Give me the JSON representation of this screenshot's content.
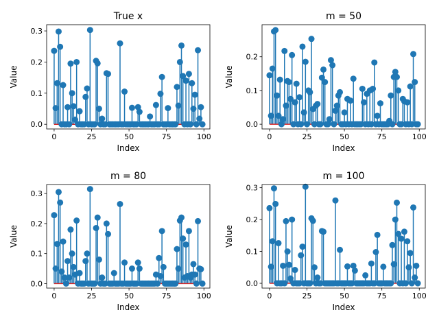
{
  "chart_data": [
    {
      "type": "stem",
      "title": "True x",
      "xlabel": "Index",
      "ylabel": "Value",
      "xlim": [
        -5,
        104
      ],
      "ylim": [
        -0.015,
        0.32
      ],
      "xticks": [
        0,
        25,
        50,
        75,
        100
      ],
      "yticks": [
        0.0,
        0.1,
        0.2,
        0.3
      ],
      "ytick_labels": [
        "0.0",
        "0.1",
        "0.2",
        "0.3"
      ],
      "marker_color": "#1f77b4",
      "baseline_color": "#d62728",
      "series": [
        {
          "x": [
            0,
            1,
            2,
            3,
            4,
            5,
            6,
            7,
            8,
            9,
            10,
            11,
            12,
            13,
            14,
            15,
            16,
            17,
            18,
            19,
            20,
            21,
            22,
            23,
            24,
            25,
            26,
            27,
            28,
            29,
            30,
            31,
            32,
            33,
            34,
            35,
            36,
            37,
            38,
            39,
            40,
            41,
            42,
            43,
            44,
            45,
            46,
            47,
            48,
            49,
            50,
            51,
            52,
            53,
            54,
            55,
            56,
            57,
            58,
            59,
            60,
            61,
            62,
            63,
            64,
            65,
            66,
            67,
            68,
            69,
            70,
            71,
            72,
            73,
            74,
            75,
            76,
            77,
            78,
            79,
            80,
            81,
            82,
            83,
            84,
            85,
            86,
            87,
            88,
            89,
            90,
            91,
            92,
            93,
            94,
            95,
            96,
            97,
            98,
            99
          ],
          "y": [
            0.236,
            0.052,
            0.132,
            0.298,
            0.249,
            0.0,
            0.126,
            0.0,
            0.0,
            0.055,
            0.0,
            0.195,
            0.1,
            0.058,
            0.015,
            0.2,
            0.0,
            0.042,
            0.0,
            0.0,
            0.0,
            0.088,
            0.115,
            0.0,
            0.303,
            0.0,
            0.0,
            0.0,
            0.204,
            0.196,
            0.05,
            0.0,
            0.018,
            0.0,
            0.0,
            0.164,
            0.162,
            0.0,
            0.0,
            0.0,
            0.0,
            0.0,
            0.0,
            0.0,
            0.26,
            0.0,
            0.0,
            0.105,
            0.0,
            0.0,
            0.0,
            0.0,
            0.053,
            0.0,
            0.0,
            0.0,
            0.055,
            0.04,
            0.0,
            0.0,
            0.0,
            0.0,
            0.0,
            0.0,
            0.025,
            0.0,
            0.0,
            0.0,
            0.062,
            0.0,
            0.0,
            0.098,
            0.152,
            0.0,
            0.0,
            0.0,
            0.052,
            0.0,
            0.0,
            0.0,
            0.0,
            0.0,
            0.12,
            0.06,
            0.2,
            0.253,
            0.155,
            0.0,
            0.14,
            0.0,
            0.162,
            0.0,
            0.132,
            0.05,
            0.095,
            0.0,
            0.238,
            0.018,
            0.055,
            0.0
          ]
        }
      ]
    },
    {
      "type": "stem",
      "title": "m = 50",
      "xlabel": "Index",
      "ylabel": "Value",
      "xlim": [
        -5,
        104
      ],
      "ylim": [
        -0.014,
        0.295
      ],
      "xticks": [
        0,
        25,
        50,
        75,
        100
      ],
      "yticks": [
        0.0,
        0.1,
        0.2
      ],
      "ytick_labels": [
        "0.0",
        "0.1",
        "0.2"
      ],
      "marker_color": "#1f77b4",
      "baseline_color": "#d62728",
      "series": [
        {
          "x": [
            0,
            1,
            2,
            3,
            4,
            5,
            6,
            7,
            8,
            9,
            10,
            11,
            12,
            13,
            14,
            15,
            16,
            17,
            18,
            19,
            20,
            21,
            22,
            23,
            24,
            25,
            26,
            27,
            28,
            29,
            30,
            31,
            32,
            33,
            34,
            35,
            36,
            37,
            38,
            39,
            40,
            41,
            42,
            43,
            44,
            45,
            46,
            47,
            48,
            49,
            50,
            51,
            52,
            53,
            54,
            55,
            56,
            57,
            58,
            59,
            60,
            61,
            62,
            63,
            64,
            65,
            66,
            67,
            68,
            69,
            70,
            71,
            72,
            73,
            74,
            75,
            76,
            77,
            78,
            79,
            80,
            81,
            82,
            83,
            84,
            85,
            86,
            87,
            88,
            89,
            90,
            91,
            92,
            93,
            94,
            95,
            96,
            97,
            98,
            99
          ],
          "y": [
            0.145,
            0.025,
            0.165,
            0.275,
            0.279,
            0.085,
            0.025,
            0.132,
            0.0,
            0.015,
            0.217,
            0.055,
            0.128,
            0.125,
            0.075,
            0.205,
            0.0,
            0.065,
            0.12,
            0.0,
            0.08,
            0.0,
            0.23,
            0.035,
            0.185,
            0.0,
            0.1,
            0.095,
            0.253,
            0.045,
            0.0,
            0.055,
            0.06,
            0.0,
            0.0,
            0.138,
            0.162,
            0.125,
            0.0,
            0.0,
            0.015,
            0.19,
            0.175,
            0.0,
            0.04,
            0.055,
            0.085,
            0.095,
            0.0,
            0.0,
            0.035,
            0.0,
            0.075,
            0.0,
            0.07,
            0.0,
            0.135,
            0.0,
            0.0,
            0.0,
            0.0,
            0.0,
            0.105,
            0.065,
            0.0,
            0.09,
            0.0,
            0.1,
            0.0,
            0.105,
            0.183,
            0.0,
            0.025,
            0.0,
            0.062,
            0.0,
            0.0,
            0.0,
            0.0,
            0.0,
            0.01,
            0.085,
            0.0,
            0.14,
            0.155,
            0.14,
            0.1,
            0.0,
            0.0,
            0.075,
            0.068,
            0.0,
            0.065,
            0.0,
            0.112,
            0.0,
            0.208,
            0.125,
            0.0,
            0.0
          ]
        }
      ]
    },
    {
      "type": "stem",
      "title": "m = 80",
      "xlabel": "Index",
      "ylabel": "Value",
      "xlim": [
        -5,
        104
      ],
      "ylim": [
        -0.015,
        0.33
      ],
      "xticks": [
        0,
        25,
        50,
        75,
        100
      ],
      "yticks": [
        0.0,
        0.1,
        0.2,
        0.3
      ],
      "ytick_labels": [
        "0.0",
        "0.1",
        "0.2",
        "0.3"
      ],
      "marker_color": "#1f77b4",
      "baseline_color": "#d62728",
      "series": [
        {
          "x": [
            0,
            1,
            2,
            3,
            4,
            5,
            6,
            7,
            8,
            9,
            10,
            11,
            12,
            13,
            14,
            15,
            16,
            17,
            18,
            19,
            20,
            21,
            22,
            23,
            24,
            25,
            26,
            27,
            28,
            29,
            30,
            31,
            32,
            33,
            34,
            35,
            36,
            37,
            38,
            39,
            40,
            41,
            42,
            43,
            44,
            45,
            46,
            47,
            48,
            49,
            50,
            51,
            52,
            53,
            54,
            55,
            56,
            57,
            58,
            59,
            60,
            61,
            62,
            63,
            64,
            65,
            66,
            67,
            68,
            69,
            70,
            71,
            72,
            73,
            74,
            75,
            76,
            77,
            78,
            79,
            80,
            81,
            82,
            83,
            84,
            85,
            86,
            87,
            88,
            89,
            90,
            91,
            92,
            93,
            94,
            95,
            96,
            97,
            98,
            99
          ],
          "y": [
            0.228,
            0.05,
            0.132,
            0.305,
            0.27,
            0.04,
            0.14,
            0.02,
            0.0,
            0.075,
            0.02,
            0.18,
            0.1,
            0.055,
            0.03,
            0.21,
            0.0,
            0.035,
            0.0,
            0.0,
            0.0,
            0.075,
            0.1,
            0.0,
            0.315,
            0.0,
            0.0,
            0.0,
            0.185,
            0.22,
            0.08,
            0.0,
            0.02,
            0.0,
            0.0,
            0.2,
            0.165,
            0.0,
            0.0,
            0.0,
            0.035,
            0.0,
            0.0,
            0.0,
            0.265,
            0.0,
            0.0,
            0.07,
            0.0,
            0.0,
            0.0,
            0.0,
            0.05,
            0.0,
            0.0,
            0.0,
            0.07,
            0.05,
            0.0,
            0.0,
            0.0,
            0.0,
            0.0,
            0.0,
            0.0,
            0.0,
            0.0,
            0.0,
            0.03,
            0.0,
            0.085,
            0.025,
            0.175,
            0.055,
            0.0,
            0.0,
            0.0,
            0.0,
            0.0,
            0.0,
            0.0,
            0.0,
            0.115,
            0.05,
            0.21,
            0.22,
            0.15,
            0.02,
            0.13,
            0.025,
            0.175,
            0.02,
            0.03,
            0.065,
            0.03,
            0.0,
            0.208,
            0.05,
            0.048,
            0.0
          ]
        }
      ]
    },
    {
      "type": "stem",
      "title": "m = 100",
      "xlabel": "Index",
      "ylabel": "Value",
      "xlim": [
        -5,
        104
      ],
      "ylim": [
        -0.015,
        0.31
      ],
      "xticks": [
        0,
        25,
        50,
        75,
        100
      ],
      "yticks": [
        0.0,
        0.1,
        0.2,
        0.3
      ],
      "ytick_labels": [
        "0.0",
        "0.1",
        "0.2",
        "0.3"
      ],
      "marker_color": "#1f77b4",
      "baseline_color": "#d62728",
      "series": [
        {
          "x": [
            0,
            1,
            2,
            3,
            4,
            5,
            6,
            7,
            8,
            9,
            10,
            11,
            12,
            13,
            14,
            15,
            16,
            17,
            18,
            19,
            20,
            21,
            22,
            23,
            24,
            25,
            26,
            27,
            28,
            29,
            30,
            31,
            32,
            33,
            34,
            35,
            36,
            37,
            38,
            39,
            40,
            41,
            42,
            43,
            44,
            45,
            46,
            47,
            48,
            49,
            50,
            51,
            52,
            53,
            54,
            55,
            56,
            57,
            58,
            59,
            60,
            61,
            62,
            63,
            64,
            65,
            66,
            67,
            68,
            69,
            70,
            71,
            72,
            73,
            74,
            75,
            76,
            77,
            78,
            79,
            80,
            81,
            82,
            83,
            84,
            85,
            86,
            87,
            88,
            89,
            90,
            91,
            92,
            93,
            94,
            95,
            96,
            97,
            98,
            99
          ],
          "y": [
            0.236,
            0.052,
            0.132,
            0.298,
            0.249,
            0.0,
            0.126,
            0.0,
            0.0,
            0.055,
            0.0,
            0.195,
            0.1,
            0.058,
            0.015,
            0.2,
            0.0,
            0.042,
            0.0,
            0.0,
            0.0,
            0.088,
            0.115,
            0.0,
            0.303,
            0.0,
            0.0,
            0.0,
            0.204,
            0.196,
            0.05,
            0.0,
            0.018,
            0.0,
            0.0,
            0.164,
            0.162,
            0.0,
            0.0,
            0.0,
            0.0,
            0.0,
            0.0,
            0.0,
            0.26,
            0.0,
            0.0,
            0.105,
            0.0,
            0.0,
            0.0,
            0.0,
            0.053,
            0.0,
            0.0,
            0.0,
            0.055,
            0.04,
            0.0,
            0.0,
            0.0,
            0.0,
            0.0,
            0.0,
            0.025,
            0.0,
            0.0,
            0.0,
            0.062,
            0.0,
            0.0,
            0.098,
            0.152,
            0.0,
            0.0,
            0.0,
            0.052,
            0.0,
            0.0,
            0.0,
            0.0,
            0.0,
            0.12,
            0.06,
            0.2,
            0.253,
            0.155,
            0.0,
            0.14,
            0.0,
            0.162,
            0.0,
            0.132,
            0.05,
            0.095,
            0.0,
            0.238,
            0.018,
            0.055,
            0.0
          ]
        }
      ]
    }
  ]
}
